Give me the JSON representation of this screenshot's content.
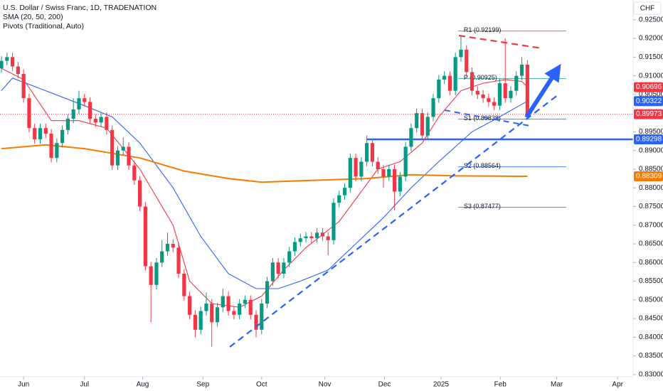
{
  "chart_data": {
    "type": "candlestick",
    "title": "U.S. Dollar / Swiss Franc, 1D, TRADENATION",
    "indicators": [
      "SMA (20, 50, 200)",
      "Pivots (Traditional, Auto)"
    ],
    "currency": "CHF",
    "up_color": "#089981",
    "down_color": "#f23645",
    "open": [
      0.912,
      0.914,
      0.915,
      0.9125,
      0.9105,
      0.904,
      0.896,
      0.893,
      0.896,
      0.8945,
      0.888,
      0.892,
      0.8955,
      0.8985,
      0.901,
      0.904,
      0.903,
      0.8985,
      0.8975,
      0.899,
      0.8955,
      0.886,
      0.89,
      0.891,
      0.886,
      0.882,
      0.875,
      0.859,
      0.854,
      0.86,
      0.863,
      0.865,
      0.864,
      0.857,
      0.851,
      0.846,
      0.842,
      0.847,
      0.849,
      0.844,
      0.848,
      0.851,
      0.847,
      0.846,
      0.849,
      0.85,
      0.846,
      0.842,
      0.849,
      0.855,
      0.86,
      0.857,
      0.86,
      0.863,
      0.8655,
      0.8665,
      0.867,
      0.8665,
      0.868,
      0.867,
      0.866,
      0.876,
      0.878,
      0.88,
      0.888,
      0.883,
      0.887,
      0.892,
      0.887,
      0.885,
      0.883,
      0.885,
      0.879,
      0.883,
      0.891,
      0.896,
      0.9,
      0.894,
      0.899,
      0.904,
      0.909,
      0.91,
      0.906,
      0.915,
      0.917,
      0.911,
      0.906,
      0.905,
      0.904,
      0.903,
      0.902,
      0.908,
      0.904,
      0.906,
      0.91,
      0.913
    ],
    "high": [
      0.9152,
      0.9162,
      0.9162,
      0.9137,
      0.9117,
      0.9052,
      0.8972,
      0.8972,
      0.8972,
      0.8957,
      0.8932,
      0.8967,
      0.8997,
      0.904,
      0.906,
      0.9052,
      0.9042,
      0.8997,
      0.9002,
      0.9002,
      0.8967,
      0.8912,
      0.8935,
      0.8922,
      0.8872,
      0.8832,
      0.8762,
      0.8602,
      0.8612,
      0.866,
      0.868,
      0.8662,
      0.8652,
      0.8582,
      0.8522,
      0.8472,
      0.8482,
      0.852,
      0.8502,
      0.8492,
      0.853,
      0.8522,
      0.8482,
      0.8502,
      0.8512,
      0.8512,
      0.8472,
      0.8502,
      0.8562,
      0.8612,
      0.8612,
      0.8612,
      0.8642,
      0.8667,
      0.8677,
      0.8682,
      0.8682,
      0.8692,
      0.8692,
      0.8682,
      0.8772,
      0.8792,
      0.8812,
      0.8892,
      0.8892,
      0.8882,
      0.894,
      0.8932,
      0.8882,
      0.8862,
      0.8862,
      0.8862,
      0.8842,
      0.8922,
      0.8972,
      0.9012,
      0.9012,
      0.9002,
      0.9052,
      0.9102,
      0.9112,
      0.9112,
      0.9162,
      0.9205,
      0.9182,
      0.9122,
      0.9072,
      0.9062,
      0.9052,
      0.9042,
      0.9092,
      0.92,
      0.9072,
      0.9112,
      0.915,
      0.9142
    ],
    "low": [
      0.9108,
      0.9128,
      0.9113,
      0.9093,
      0.9028,
      0.8948,
      0.8918,
      0.8918,
      0.8933,
      0.8868,
      0.8868,
      0.8908,
      0.8943,
      0.8973,
      0.8998,
      0.9018,
      0.8973,
      0.8963,
      0.8963,
      0.8943,
      0.8848,
      0.8848,
      0.8888,
      0.8848,
      0.8808,
      0.8738,
      0.8578,
      0.844,
      0.8528,
      0.8588,
      0.8618,
      0.8628,
      0.8558,
      0.8498,
      0.8448,
      0.84,
      0.8408,
      0.8458,
      0.8375,
      0.8428,
      0.8468,
      0.8458,
      0.8448,
      0.8448,
      0.8478,
      0.8448,
      0.84,
      0.8408,
      0.8478,
      0.8538,
      0.8558,
      0.8558,
      0.8588,
      0.8618,
      0.8643,
      0.8653,
      0.8653,
      0.8653,
      0.8658,
      0.862,
      0.8648,
      0.8748,
      0.8768,
      0.8788,
      0.8818,
      0.8818,
      0.8858,
      0.8858,
      0.8838,
      0.88,
      0.8818,
      0.874,
      0.8778,
      0.8818,
      0.8898,
      0.8948,
      0.8928,
      0.8928,
      0.8978,
      0.9028,
      0.9078,
      0.9048,
      0.9048,
      0.9138,
      0.9098,
      0.9048,
      0.9038,
      0.9028,
      0.9018,
      0.9008,
      0.9008,
      0.9028,
      0.9028,
      0.9048,
      0.9088,
      0.8985
    ],
    "close": [
      0.914,
      0.915,
      0.9125,
      0.9105,
      0.904,
      0.896,
      0.893,
      0.896,
      0.8945,
      0.888,
      0.892,
      0.8955,
      0.8985,
      0.901,
      0.904,
      0.903,
      0.8985,
      0.8975,
      0.899,
      0.8955,
      0.886,
      0.89,
      0.891,
      0.886,
      0.882,
      0.875,
      0.859,
      0.854,
      0.86,
      0.863,
      0.865,
      0.864,
      0.857,
      0.851,
      0.846,
      0.842,
      0.847,
      0.849,
      0.844,
      0.848,
      0.851,
      0.847,
      0.846,
      0.849,
      0.85,
      0.846,
      0.842,
      0.849,
      0.855,
      0.86,
      0.857,
      0.86,
      0.863,
      0.8655,
      0.8665,
      0.867,
      0.8665,
      0.868,
      0.867,
      0.866,
      0.876,
      0.878,
      0.88,
      0.888,
      0.883,
      0.887,
      0.892,
      0.887,
      0.885,
      0.883,
      0.885,
      0.879,
      0.883,
      0.891,
      0.896,
      0.9,
      0.894,
      0.899,
      0.904,
      0.909,
      0.91,
      0.906,
      0.915,
      0.917,
      0.911,
      0.906,
      0.905,
      0.904,
      0.903,
      0.902,
      0.908,
      0.904,
      0.906,
      0.91,
      0.913,
      0.8997
    ],
    "series": [
      {
        "color": "#f23645",
        "x": [
          0,
          4,
          9,
          14,
          19,
          25,
          31,
          34,
          38,
          43,
          47,
          51,
          55,
          61,
          64,
          68,
          72,
          76,
          79,
          83,
          87,
          91,
          94,
          95
        ],
        "values": [
          0.912,
          0.909,
          0.898,
          0.898,
          0.896,
          0.885,
          0.87,
          0.855,
          0.849,
          0.848,
          0.851,
          0.858,
          0.864,
          0.871,
          0.877,
          0.885,
          0.887,
          0.892,
          0.899,
          0.906,
          0.908,
          0.909,
          0.9085,
          0.90696
        ]
      },
      {
        "color": "#2962ff",
        "x": [
          0,
          2,
          8,
          15,
          20,
          25,
          31,
          36,
          41,
          46,
          50,
          54,
          59,
          64,
          69,
          74,
          79,
          85,
          90,
          95
        ],
        "values": [
          0.906,
          0.9094,
          0.906,
          0.902,
          0.899,
          0.892,
          0.88,
          0.867,
          0.857,
          0.853,
          0.853,
          0.855,
          0.858,
          0.865,
          0.872,
          0.88,
          0.887,
          0.895,
          0.899,
          0.90322
        ]
      },
      {
        "color": "#f57c00",
        "x": [
          0,
          8,
          15,
          25,
          33,
          41,
          47,
          56,
          66,
          74,
          82,
          95
        ],
        "values": [
          0.8905,
          0.8915,
          0.8905,
          0.888,
          0.8845,
          0.8825,
          0.8815,
          0.882,
          0.8825,
          0.8835,
          0.8832,
          0.88309
        ]
      }
    ],
    "pivots": [
      {
        "label": "R1 (0.92199)",
        "value": 0.92199,
        "color": "#f23645"
      },
      {
        "label": "P (0.90925)",
        "value": 0.90925,
        "color": "#089981"
      },
      {
        "label": "S1 (0.89838)",
        "value": 0.89838,
        "color": "#2962ff"
      },
      {
        "label": "S2 (0.88564)",
        "value": 0.88564,
        "color": "#2962ff"
      },
      {
        "label": "S3 (0.87477)",
        "value": 0.87477,
        "color": "#2962ff"
      }
    ],
    "support": {
      "value": 0.89298,
      "color": "#2962ff"
    },
    "last_price": {
      "value": 0.89973,
      "color": "#f23645"
    },
    "xlim": [
      -0.26,
      114.1
    ],
    "xticks": [
      {
        "value": 4,
        "label": "Jun"
      },
      {
        "value": 15,
        "label": "Jul"
      },
      {
        "value": 25.5,
        "label": "Aug"
      },
      {
        "value": 36.4,
        "label": "Sep"
      },
      {
        "value": 47,
        "label": "Oct"
      },
      {
        "value": 58.4,
        "label": "Nov"
      },
      {
        "value": 69.2,
        "label": "Dec"
      },
      {
        "value": 79.4,
        "label": "2025"
      },
      {
        "value": 90.1,
        "label": "Feb"
      },
      {
        "value": 100.3,
        "label": "Mar"
      },
      {
        "value": 111.3,
        "label": "Apr"
      }
    ],
    "ylim": [
      0.8294,
      0.9303
    ],
    "yticks": [
      {
        "value": 0.925,
        "label": "0.92500"
      },
      {
        "value": 0.92,
        "label": "0.92000"
      },
      {
        "value": 0.915,
        "label": "0.91500"
      },
      {
        "value": 0.91,
        "label": "0.91000"
      },
      {
        "value": 0.905,
        "label": "0.90500"
      },
      {
        "value": 0.895,
        "label": "0.89500"
      },
      {
        "value": 0.89,
        "label": "0.89000"
      },
      {
        "value": 0.885,
        "label": "0.88500"
      },
      {
        "value": 0.88,
        "label": "0.88000"
      },
      {
        "value": 0.875,
        "label": "0.87500"
      },
      {
        "value": 0.87,
        "label": "0.87000"
      },
      {
        "value": 0.865,
        "label": "0.86500"
      },
      {
        "value": 0.86,
        "label": "0.86000"
      },
      {
        "value": 0.855,
        "label": "0.85500"
      },
      {
        "value": 0.85,
        "label": "0.85000"
      },
      {
        "value": 0.845,
        "label": "0.84500"
      },
      {
        "value": 0.84,
        "label": "0.84000"
      },
      {
        "value": 0.835,
        "label": "0.83500"
      },
      {
        "value": 0.83,
        "label": "0.83000"
      }
    ]
  }
}
